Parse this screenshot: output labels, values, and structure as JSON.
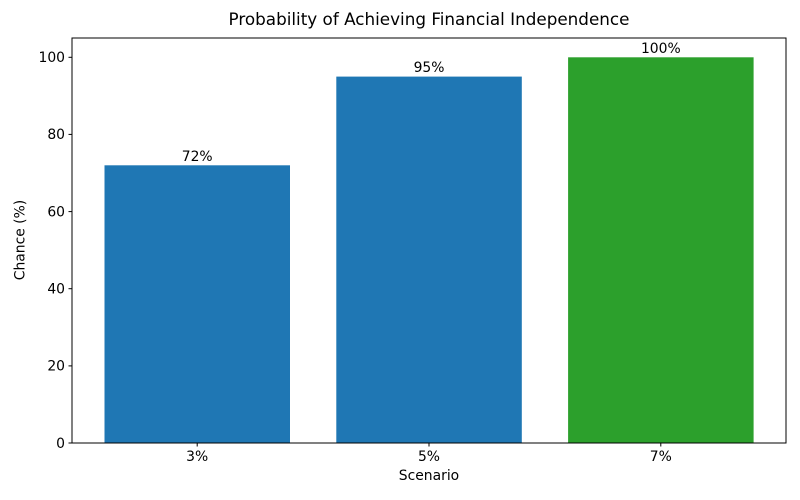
{
  "chart_data": {
    "type": "bar",
    "title": "Probability of Achieving Financial Independence",
    "xlabel": "Scenario",
    "ylabel": "Chance (%)",
    "categories": [
      "3%",
      "5%",
      "7%"
    ],
    "values": [
      72,
      95,
      100
    ],
    "value_labels": [
      "72%",
      "95%",
      "100%"
    ],
    "bar_colors": [
      "#1f77b4",
      "#1f77b4",
      "#2ca02c"
    ],
    "ylim": [
      0,
      105
    ],
    "yticks": [
      0,
      20,
      40,
      60,
      80,
      100
    ],
    "grid": false,
    "legend_position": "none",
    "bar_width_fraction": 0.8,
    "axis_color": "#000000",
    "background_color": "#ffffff"
  }
}
